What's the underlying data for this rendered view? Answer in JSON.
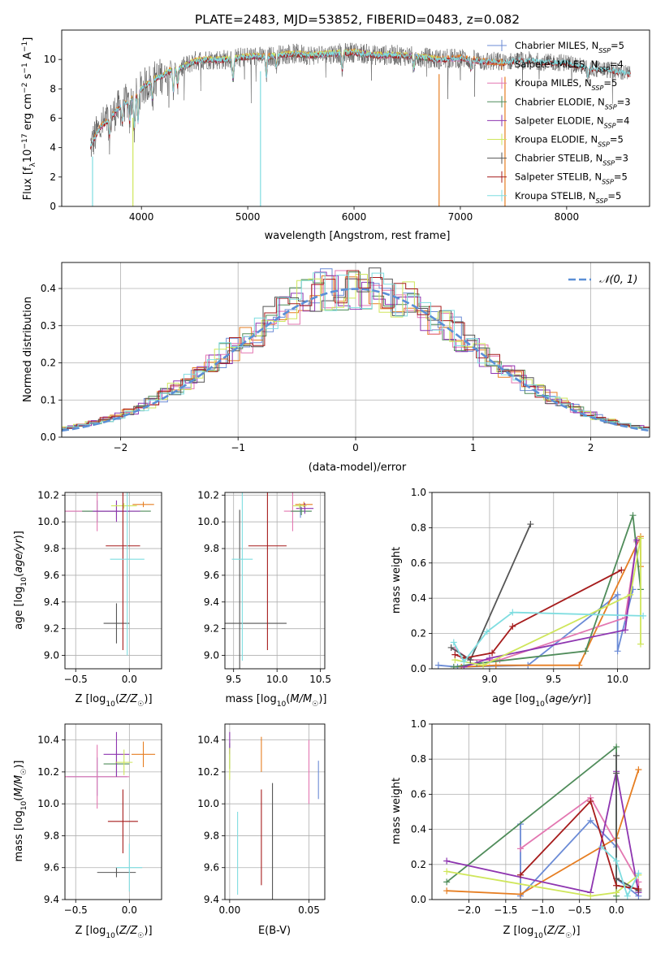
{
  "title": "PLATE=2483, MJD=53852, FIBERID=0483, z=0.082",
  "colors": {
    "Chabrier MILES": "#6b8bd6",
    "Salpeter MILES": "#e67e22",
    "Kroupa MILES": "#e377b1",
    "Chabrier ELODIE": "#4f8c5a",
    "Salpeter ELODIE": "#8e35b0",
    "Kroupa ELODIE": "#cfe65b",
    "Chabrier STELIB": "#555555",
    "Salpeter STELIB": "#a61c1c",
    "Kroupa STELIB": "#7fdde0",
    "gaussian": "#5b8fd6",
    "grid": "#b0b0b0"
  },
  "chart_data": [
    {
      "id": "spectrum",
      "type": "line",
      "xlabel": "wavelength [Angstrom, rest frame]",
      "ylabel": "Flux [f_λ10^-17 erg cm^-2 s^-1 A^-1]",
      "xlim": [
        3250,
        8780
      ],
      "ylim": [
        0,
        12
      ],
      "xticks": [
        4000,
        5000,
        6000,
        7000,
        8000
      ],
      "yticks": [
        0,
        2,
        4,
        6,
        8,
        10
      ],
      "grid": false,
      "legend_position": "upper-right",
      "legend": [
        {
          "name": "Chabrier MILES",
          "nssp": 5
        },
        {
          "name": "Salpeter MILES",
          "nssp": 4
        },
        {
          "name": "Kroupa MILES",
          "nssp": 5
        },
        {
          "name": "Chabrier ELODIE",
          "nssp": 3
        },
        {
          "name": "Salpeter ELODIE",
          "nssp": 4
        },
        {
          "name": "Kroupa ELODIE",
          "nssp": 5
        },
        {
          "name": "Chabrier STELIB",
          "nssp": 3
        },
        {
          "name": "Salpeter STELIB",
          "nssp": 5
        },
        {
          "name": "Kroupa STELIB",
          "nssp": 5
        }
      ],
      "continuum_x": [
        3520,
        3600,
        3700,
        3800,
        3900,
        4000,
        4100,
        4200,
        4300,
        4400,
        4500,
        4600,
        4800,
        5000,
        5200,
        5400,
        5600,
        5800,
        6000,
        6200,
        6400,
        6600,
        6800,
        7000,
        7200,
        7400,
        7600,
        7800,
        8000,
        8200,
        8400,
        8600
      ],
      "continuum_y": [
        4.1,
        5.3,
        6.0,
        6.8,
        7.3,
        8.0,
        8.6,
        8.9,
        9.4,
        9.5,
        9.9,
        10.0,
        10.0,
        10.2,
        10.2,
        10.4,
        10.3,
        10.4,
        10.5,
        10.3,
        10.3,
        10.2,
        10.0,
        10.1,
        9.9,
        9.8,
        10.0,
        9.8,
        9.8,
        9.4,
        9.3,
        9.0
      ]
    },
    {
      "id": "residual",
      "type": "line",
      "xlabel": "(data-model)/error",
      "ylabel": "Normed distribution",
      "xlim": [
        -2.5,
        2.5
      ],
      "ylim": [
        0,
        0.47
      ],
      "xticks": [
        -2,
        -1,
        0,
        1,
        2
      ],
      "yticks": [
        0.0,
        0.1,
        0.2,
        0.3,
        0.4
      ],
      "grid": true,
      "legend_position": "upper-right",
      "legend": [
        {
          "name": "𝒩(0, 1)"
        }
      ]
    },
    {
      "id": "z_age",
      "type": "scatter",
      "xlabel": "Z [log10(Z/Z☉)]",
      "ylabel": "age  [log10(age/yr)]",
      "xlim": [
        -0.6,
        0.3
      ],
      "ylim": [
        8.9,
        10.22
      ],
      "xticks": [
        -0.5,
        0.0
      ],
      "yticks": [
        9.0,
        9.2,
        9.4,
        9.6,
        9.8,
        10.0,
        10.2
      ],
      "grid": true,
      "points": [
        {
          "s": "Chabrier MILES",
          "x": -0.3,
          "y": 10.08,
          "xe": 0.3,
          "ye": 0.08
        },
        {
          "s": "Salpeter MILES",
          "x": 0.13,
          "y": 10.13,
          "xe": 0.1,
          "ye": 0.02
        },
        {
          "s": "Kroupa MILES",
          "x": -0.3,
          "y": 10.08,
          "xe": 0.3,
          "ye": 0.15
        },
        {
          "s": "Chabrier ELODIE",
          "x": -0.12,
          "y": 10.08,
          "xe": 0.32,
          "ye": 0.06
        },
        {
          "s": "Salpeter ELODIE",
          "x": -0.12,
          "y": 10.08,
          "xe": 0.22,
          "ye": 0.08
        },
        {
          "s": "Kroupa ELODIE",
          "x": -0.05,
          "y": 10.12,
          "xe": 0.12,
          "ye": 0.02
        },
        {
          "s": "Chabrier STELIB",
          "x": -0.12,
          "y": 9.24,
          "xe": 0.12,
          "ye": 0.15
        },
        {
          "s": "Salpeter STELIB",
          "x": -0.06,
          "y": 9.82,
          "xe": 0.16,
          "ye": 0.78
        },
        {
          "s": "Kroupa STELIB",
          "x": -0.02,
          "y": 9.72,
          "xe": 0.16,
          "ye": 0.72
        }
      ]
    },
    {
      "id": "mass_age",
      "type": "scatter",
      "xlabel": "mass [log10(M/M☉)]",
      "ylabel": "",
      "xlim": [
        9.4,
        10.55
      ],
      "ylim": [
        8.9,
        10.22
      ],
      "xticks": [
        9.5,
        10.0,
        10.5
      ],
      "yticks": [
        9.0,
        9.2,
        9.4,
        9.6,
        9.8,
        10.0,
        10.2
      ],
      "grid": true,
      "points": [
        {
          "s": "Chabrier MILES",
          "x": 10.27,
          "y": 10.08,
          "xe": 0.12,
          "ye": 0.05
        },
        {
          "s": "Salpeter MILES",
          "x": 10.31,
          "y": 10.13,
          "xe": 0.1,
          "ye": 0.02
        },
        {
          "s": "Kroupa MILES",
          "x": 10.18,
          "y": 10.08,
          "xe": 0.1,
          "ye": 0.15
        },
        {
          "s": "Chabrier ELODIE",
          "x": 10.28,
          "y": 10.08,
          "xe": 0.12,
          "ye": 0.03
        },
        {
          "s": "Salpeter ELODIE",
          "x": 10.32,
          "y": 10.1,
          "xe": 0.1,
          "ye": 0.04
        },
        {
          "s": "Kroupa ELODIE",
          "x": 10.26,
          "y": 10.12,
          "xe": 0.08,
          "ye": 0.02
        },
        {
          "s": "Chabrier STELIB",
          "x": 9.57,
          "y": 9.24,
          "xe": 0.54,
          "ye": 0.85
        },
        {
          "s": "Salpeter STELIB",
          "x": 9.89,
          "y": 9.82,
          "xe": 0.22,
          "ye": 0.78
        },
        {
          "s": "Kroupa STELIB",
          "x": 9.6,
          "y": 9.72,
          "xe": 0.12,
          "ye": 0.76
        }
      ]
    },
    {
      "id": "age_weight",
      "type": "line",
      "xlabel": "age  [log10(age/yr)]",
      "ylabel": "mass weight",
      "xlim": [
        8.55,
        10.25
      ],
      "ylim": [
        0,
        1.0
      ],
      "xticks": [
        9.0,
        9.5,
        10.0
      ],
      "yticks": [
        0.0,
        0.2,
        0.4,
        0.6,
        0.8,
        1.0
      ],
      "grid": true,
      "series": [
        {
          "s": "Chabrier MILES",
          "x": [
            8.6,
            8.75,
            9.3,
            10.0,
            10.0,
            10.12
          ],
          "y": [
            0.02,
            0.01,
            0.02,
            0.42,
            0.1,
            0.45
          ]
        },
        {
          "s": "Salpeter MILES",
          "x": [
            8.78,
            9.05,
            9.7,
            10.18,
            10.18
          ],
          "y": [
            0.01,
            0.02,
            0.02,
            0.75,
            0.58
          ]
        },
        {
          "s": "Kroupa MILES",
          "x": [
            8.73,
            8.85,
            9.08,
            10.06,
            10.15
          ],
          "y": [
            0.11,
            0.05,
            0.05,
            0.29,
            0.72
          ]
        },
        {
          "s": "Chabrier ELODIE",
          "x": [
            8.72,
            8.9,
            9.75,
            10.12,
            10.18
          ],
          "y": [
            0.01,
            0.03,
            0.1,
            0.87,
            0.45
          ]
        },
        {
          "s": "Salpeter ELODIE",
          "x": [
            8.8,
            9.0,
            10.06,
            10.15
          ],
          "y": [
            0.01,
            0.06,
            0.22,
            0.73
          ]
        },
        {
          "s": "Kroupa ELODIE",
          "x": [
            8.73,
            8.95,
            10.1,
            10.18,
            10.18
          ],
          "y": [
            0.05,
            0.02,
            0.42,
            0.74,
            0.14
          ]
        },
        {
          "s": "Chabrier STELIB",
          "x": [
            8.7,
            8.85,
            9.32
          ],
          "y": [
            0.12,
            0.05,
            0.82
          ]
        },
        {
          "s": "Salpeter STELIB",
          "x": [
            8.73,
            8.8,
            9.02,
            9.18,
            10.03
          ],
          "y": [
            0.08,
            0.06,
            0.09,
            0.24,
            0.56
          ]
        },
        {
          "s": "Kroupa STELIB",
          "x": [
            8.72,
            8.8,
            8.98,
            9.18,
            10.2
          ],
          "y": [
            0.15,
            0.04,
            0.21,
            0.32,
            0.3
          ]
        }
      ]
    },
    {
      "id": "z_mass",
      "type": "scatter",
      "xlabel": "Z [log10(Z/Z☉)]",
      "ylabel": "mass [log10(M/M☉)]",
      "xlim": [
        -0.6,
        0.3
      ],
      "ylim": [
        9.4,
        10.5
      ],
      "xticks": [
        -0.5,
        0.0
      ],
      "yticks": [
        9.4,
        9.6,
        9.8,
        10.0,
        10.2,
        10.4
      ],
      "grid": true,
      "points": [
        {
          "s": "Chabrier MILES",
          "x": -0.3,
          "y": 10.17,
          "xe": 0.28,
          "ye": 0.12
        },
        {
          "s": "Salpeter MILES",
          "x": 0.13,
          "y": 10.31,
          "xe": 0.11,
          "ye": 0.08
        },
        {
          "s": "Kroupa MILES",
          "x": -0.3,
          "y": 10.17,
          "xe": 0.3,
          "ye": 0.2
        },
        {
          "s": "Chabrier ELODIE",
          "x": -0.12,
          "y": 10.25,
          "xe": 0.12,
          "ye": 0.08
        },
        {
          "s": "Salpeter ELODIE",
          "x": -0.12,
          "y": 10.31,
          "xe": 0.12,
          "ye": 0.14
        },
        {
          "s": "Kroupa ELODIE",
          "x": -0.05,
          "y": 10.26,
          "xe": 0.08,
          "ye": 0.08
        },
        {
          "s": "Chabrier STELIB",
          "x": -0.12,
          "y": 9.57,
          "xe": 0.18,
          "ye": 0.03
        },
        {
          "s": "Salpeter STELIB",
          "x": -0.06,
          "y": 9.89,
          "xe": 0.14,
          "ye": 0.2
        },
        {
          "s": "Kroupa STELIB",
          "x": 0.0,
          "y": 9.6,
          "xe": 0.12,
          "ye": 0.15
        }
      ]
    },
    {
      "id": "ebv_mass",
      "type": "scatter",
      "xlabel": "E(B-V)",
      "ylabel": "",
      "xlim": [
        -0.003,
        0.06
      ],
      "ylim": [
        9.4,
        10.5
      ],
      "xticks": [
        0.0,
        0.05
      ],
      "yticks": [
        9.4,
        9.6,
        9.8,
        10.0,
        10.2,
        10.4
      ],
      "grid": true,
      "points": [
        {
          "s": "Chabrier MILES",
          "x": 0.056,
          "y": 10.15,
          "xe": 0,
          "ye": 0.12
        },
        {
          "s": "Salpeter MILES",
          "x": 0.02,
          "y": 10.31,
          "xe": 0,
          "ye": 0.11
        },
        {
          "s": "Kroupa MILES",
          "x": 0.05,
          "y": 10.2,
          "xe": 0,
          "ye": 0.2
        },
        {
          "s": "Chabrier ELODIE",
          "x": 0.0,
          "y": 10.3,
          "xe": 0,
          "ye": 0.08
        },
        {
          "s": "Salpeter ELODIE",
          "x": 0.0,
          "y": 10.38,
          "xe": 0,
          "ye": 0.07
        },
        {
          "s": "Kroupa ELODIE",
          "x": 0.0,
          "y": 10.25,
          "xe": 0,
          "ye": 0.1
        },
        {
          "s": "Chabrier STELIB",
          "x": 0.027,
          "y": 9.71,
          "xe": 0,
          "ye": 0.42
        },
        {
          "s": "Salpeter STELIB",
          "x": 0.02,
          "y": 9.79,
          "xe": 0,
          "ye": 0.3
        },
        {
          "s": "Kroupa STELIB",
          "x": 0.005,
          "y": 9.69,
          "xe": 0,
          "ye": 0.26
        }
      ]
    },
    {
      "id": "z_weight",
      "type": "line",
      "xlabel": "Z [log10(Z/Z☉)]",
      "ylabel": "mass weight",
      "xlim": [
        -2.5,
        0.45
      ],
      "ylim": [
        0,
        1.0
      ],
      "xticks": [
        -2.0,
        -1.5,
        -1.0,
        -0.5,
        0.0
      ],
      "yticks": [
        0.0,
        0.2,
        0.4,
        0.6,
        0.8,
        1.0
      ],
      "grid": true,
      "series": [
        {
          "s": "Chabrier MILES",
          "x": [
            -1.3,
            -1.3,
            -0.35,
            0.0,
            0.0,
            0.3
          ],
          "y": [
            0.43,
            0.02,
            0.45,
            0.3,
            0.12,
            0.02
          ]
        },
        {
          "s": "Salpeter MILES",
          "x": [
            -2.3,
            -1.3,
            0.0,
            0.3
          ],
          "y": [
            0.05,
            0.03,
            0.35,
            0.74
          ]
        },
        {
          "s": "Kroupa MILES",
          "x": [
            -1.3,
            -0.35,
            0.3,
            0.3
          ],
          "y": [
            0.29,
            0.58,
            0.1,
            0.05
          ]
        },
        {
          "s": "Chabrier ELODIE",
          "x": [
            -2.3,
            0.0,
            0.0
          ],
          "y": [
            0.1,
            0.87,
            0.02
          ]
        },
        {
          "s": "Salpeter ELODIE",
          "x": [
            -2.3,
            -0.35,
            0.0,
            0.3
          ],
          "y": [
            0.22,
            0.04,
            0.73,
            0.04
          ]
        },
        {
          "s": "Kroupa ELODIE",
          "x": [
            -2.3,
            -0.35,
            0.0,
            0.3
          ],
          "y": [
            0.16,
            0.02,
            0.04,
            0.14
          ]
        },
        {
          "s": "Chabrier STELIB",
          "x": [
            0.0,
            0.0,
            0.0,
            0.3
          ],
          "y": [
            0.82,
            0.72,
            0.12,
            0.05
          ]
        },
        {
          "s": "Salpeter STELIB",
          "x": [
            -1.3,
            -0.35,
            0.0,
            0.3
          ],
          "y": [
            0.14,
            0.56,
            0.08,
            0.06
          ]
        },
        {
          "s": "Kroupa STELIB",
          "x": [
            -0.2,
            0.0,
            0.15,
            0.3
          ],
          "y": [
            0.3,
            0.22,
            0.02,
            0.15
          ]
        }
      ]
    }
  ]
}
